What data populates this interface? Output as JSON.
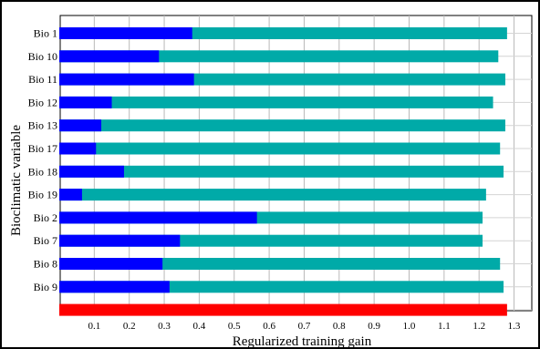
{
  "chart_data": {
    "type": "bar",
    "orientation": "horizontal",
    "stacked": false,
    "xlabel": "Regularized training gain",
    "ylabel": "Bioclimatic variable",
    "xlim": [
      0,
      1.35
    ],
    "xticks": [
      "0.1",
      "0.2",
      "0.3",
      "0.4",
      "0.5",
      "0.6",
      "0.7",
      "0.8",
      "0.9",
      "1.0",
      "1.1",
      "1.2",
      "1.3"
    ],
    "grid": true,
    "categories": [
      "Bio 1",
      "Bio 10",
      "Bio 11",
      "Bio 12",
      "Bio 13",
      "Bio 17",
      "Bio 18",
      "Bio 19",
      "Bio 2",
      "Bio 7",
      "Bio 8",
      "Bio 9",
      ""
    ],
    "series": [
      {
        "color": "#00aaa8",
        "values": [
          1.28,
          1.255,
          1.275,
          1.24,
          1.275,
          1.26,
          1.27,
          1.22,
          1.21,
          1.21,
          1.26,
          1.27,
          null
        ]
      },
      {
        "color": "#0000ff",
        "values": [
          0.38,
          0.285,
          0.385,
          0.15,
          0.12,
          0.105,
          0.185,
          0.065,
          0.565,
          0.345,
          0.295,
          0.315,
          null
        ]
      },
      {
        "color": "#ff0000",
        "values": [
          null,
          null,
          null,
          null,
          null,
          null,
          null,
          null,
          null,
          null,
          null,
          null,
          1.28
        ]
      }
    ]
  }
}
